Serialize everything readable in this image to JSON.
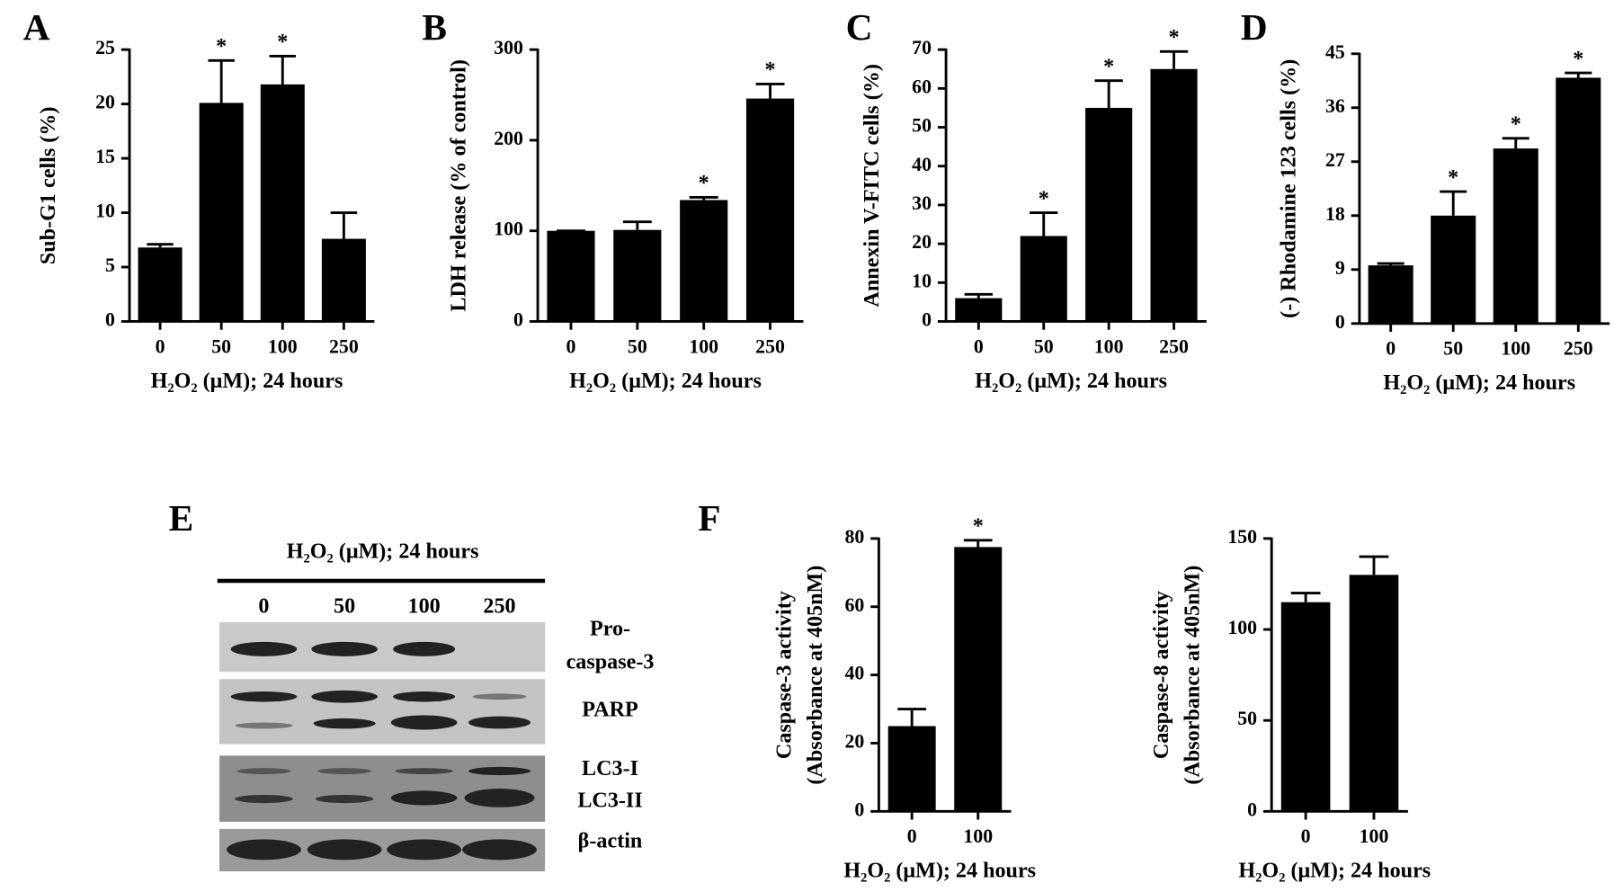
{
  "chart_data": [
    {
      "type": "bar",
      "panel": "A",
      "ylabel": "Sub-G1 cells (%)",
      "xlabel": "H₂O₂ (μM); 24 hours",
      "categories": [
        "0",
        "50",
        "100",
        "250"
      ],
      "values": [
        6.8,
        20.1,
        21.8,
        7.6
      ],
      "errors": [
        0.3,
        3.9,
        2.6,
        2.4
      ],
      "significance": [
        null,
        "*",
        "*",
        null
      ],
      "color": "#000000",
      "ylim": [
        0,
        25
      ],
      "yticks": [
        0,
        5,
        10,
        15,
        20,
        25
      ]
    },
    {
      "type": "bar",
      "panel": "B",
      "ylabel": "LDH release (% of control)",
      "xlabel": "H₂O₂ (μM); 24 hours",
      "categories": [
        "0",
        "50",
        "100",
        "250"
      ],
      "values": [
        100,
        101,
        134,
        246
      ],
      "errors": [
        0,
        9,
        3,
        16
      ],
      "significance": [
        null,
        null,
        "*",
        "*"
      ],
      "color": "#000000",
      "ylim": [
        0,
        300
      ],
      "yticks": [
        0,
        100,
        200,
        300
      ]
    },
    {
      "type": "bar",
      "panel": "C",
      "ylabel": "Annexin V-FITC cells (%)",
      "xlabel": "H₂O₂ (μM); 24 hours",
      "categories": [
        "0",
        "50",
        "100",
        "250"
      ],
      "values": [
        6,
        22,
        55,
        65
      ],
      "errors": [
        1,
        6,
        7,
        4.5
      ],
      "significance": [
        null,
        "*",
        "*",
        "*"
      ],
      "color": "#000000",
      "ylim": [
        0,
        70
      ],
      "yticks": [
        0,
        10,
        20,
        30,
        40,
        50,
        60,
        70
      ]
    },
    {
      "type": "bar",
      "panel": "D",
      "ylabel": "(-) Rhodamine 123 cells (%)",
      "xlabel": "H₂O₂ (μM); 24 hours",
      "categories": [
        "0",
        "50",
        "100",
        "250"
      ],
      "values": [
        9.7,
        18,
        29.2,
        41
      ],
      "errors": [
        0.3,
        4,
        1.7,
        0.8
      ],
      "significance": [
        null,
        "*",
        "*",
        "*"
      ],
      "color": "#000000",
      "ylim": [
        0,
        45
      ],
      "yticks": [
        0,
        9,
        18,
        27,
        36,
        45
      ]
    },
    {
      "type": "bar",
      "panel": "F",
      "ylabel": [
        "Caspase-3 activity",
        "(Absorbance at 405nM)"
      ],
      "xlabel": "H₂O₂ (μM); 24 hours",
      "categories": [
        "0",
        "100"
      ],
      "values": [
        25,
        77.5
      ],
      "errors": [
        5,
        2
      ],
      "significance": [
        null,
        "*"
      ],
      "color": "#000000",
      "ylim": [
        0,
        80
      ],
      "yticks": [
        0,
        20,
        40,
        60,
        80
      ]
    },
    {
      "type": "bar",
      "ylabel": [
        "Caspase-8 activity",
        "(Absorbance at 405nM)"
      ],
      "xlabel": "H₂O₂ (μM); 24 hours",
      "categories": [
        "0",
        "100"
      ],
      "values": [
        115,
        130
      ],
      "errors": [
        5,
        10
      ],
      "significance": [
        null,
        null
      ],
      "color": "#000000",
      "ylim": [
        0,
        150
      ],
      "yticks": [
        0,
        50,
        100,
        150
      ]
    }
  ],
  "blot": {
    "panel": "E",
    "title": "H₂O₂ (μM); 24 hours",
    "lanes": [
      "0",
      "50",
      "100",
      "250"
    ],
    "rows": [
      [
        "Pro-",
        "caspase-3"
      ],
      [
        "PARP"
      ],
      [
        "LC3-I",
        "LC3-II"
      ],
      [
        "β-actin"
      ]
    ]
  }
}
